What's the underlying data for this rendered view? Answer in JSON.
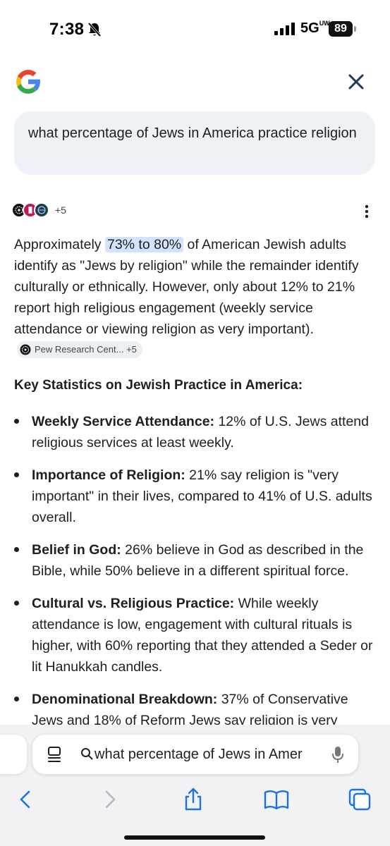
{
  "status_bar": {
    "time": "7:38",
    "network": "5G",
    "network_sup": "UW",
    "battery": "89"
  },
  "query": {
    "text": "what percentage of Jews in America practice religion"
  },
  "sources": {
    "more_count": "+5"
  },
  "answer": {
    "prefix": "Approximately ",
    "highlight": "73% to 80%",
    "suffix": " of American Jewish adults identify as \"Jews by religion\" while the remainder identify culturally or ethnically. However, only about 12% to 21% report high religious engagement (weekly service attendance or viewing religion as very important).",
    "chip_label": "Pew Research Cent...",
    "chip_count": "+5"
  },
  "section_heading": "Key Statistics on Jewish Practice in America:",
  "bullets": [
    {
      "title": "Weekly Service Attendance:",
      "text": " 12% of U.S. Jews attend religious services at least weekly."
    },
    {
      "title": "Importance of Religion:",
      "text": " 21% say religion is \"very important\" in their lives, compared to 41% of U.S. adults overall."
    },
    {
      "title": "Belief in God:",
      "text": " 26% believe in God as described in the Bible, while 50% believe in a different spiritual force."
    },
    {
      "title": "Cultural vs. Religious Practice:",
      "text": " While weekly attendance is low, engagement with cultural rituals is higher, with 60% reporting that they attended a Seder or lit Hanukkah candles."
    },
    {
      "title": "Denominational Breakdown:",
      "text": " 37% of Conservative Jews and 18% of Reform Jews say religion is very"
    }
  ],
  "browser": {
    "search_value": "what percentage of Jews in Amer"
  },
  "colors": {
    "google_blue": "#4285F4",
    "google_red": "#EA4335",
    "google_yellow": "#FBBC05",
    "google_green": "#34A853",
    "safari_blue": "#1a73e8",
    "highlight": "#d3e3fd"
  }
}
